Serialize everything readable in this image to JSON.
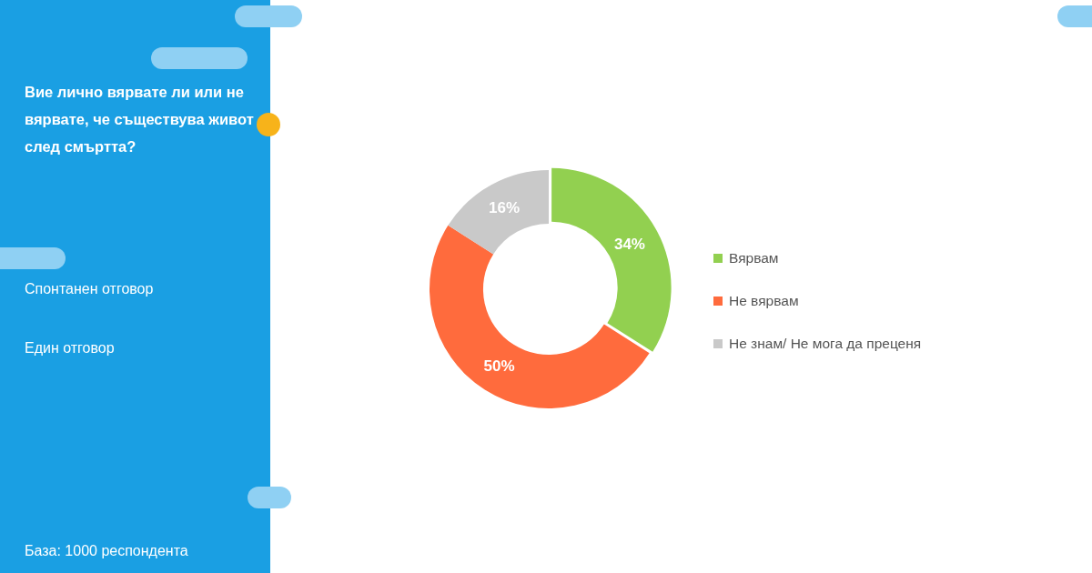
{
  "chart_data": {
    "type": "donut",
    "title": "Вие лично вярвате ли или не вярвате, че съществува живот след смъртта?",
    "categories": [
      "Вярвам",
      "Не вярвам",
      "Не знам/ Не мога да преценя"
    ],
    "values": [
      34,
      50,
      16
    ],
    "colors": [
      "#92d050",
      "#ff6b3d",
      "#c9c9c9"
    ],
    "value_labels": [
      "34%",
      "50%",
      "16%"
    ],
    "legend": "right",
    "annotations": [
      "Спонтанен отговор",
      "Един отговор",
      "База:  1000 респондента"
    ]
  }
}
